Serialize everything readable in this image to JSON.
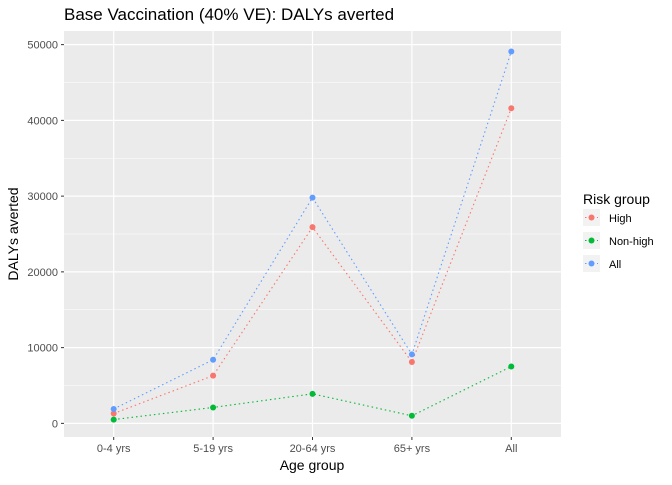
{
  "chart_data": {
    "type": "line",
    "title": "Base Vaccination (40% VE): DALYs averted",
    "xlabel": "Age group",
    "ylabel": "DALYs averted",
    "categories": [
      "0-4 yrs",
      "5-19 yrs",
      "20-64 yrs",
      "65+ yrs",
      "All"
    ],
    "ylim": [
      -1800,
      51800
    ],
    "yticks": [
      0,
      10000,
      20000,
      30000,
      40000,
      50000
    ],
    "ytick_labels": [
      "0",
      "10000",
      "20000",
      "30000",
      "40000",
      "50000"
    ],
    "grid": true,
    "legend": {
      "title": "Risk group",
      "placement": "right"
    },
    "series": [
      {
        "name": "High",
        "color": "#F8766D",
        "values": [
          1300,
          6300,
          25900,
          8100,
          41600
        ]
      },
      {
        "name": "Non-high",
        "color": "#00BA38",
        "values": [
          500,
          2100,
          3900,
          1000,
          7500
        ]
      },
      {
        "name": "All",
        "color": "#619CFF",
        "values": [
          1900,
          8400,
          29800,
          9100,
          49100
        ]
      }
    ],
    "panel_background": "#EBEBEB",
    "grid_color": "#FFFFFF"
  }
}
